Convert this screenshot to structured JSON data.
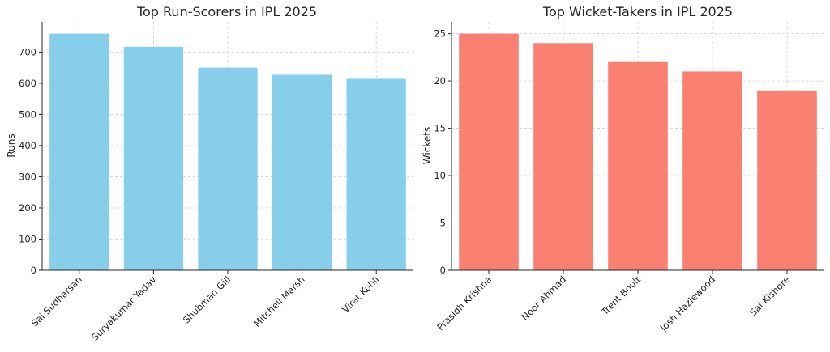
{
  "chart_data": [
    {
      "type": "bar",
      "title": "Top Run-Scorers in IPL 2025",
      "xlabel": "",
      "ylabel": "Runs",
      "categories": [
        "Sai Sudharsan",
        "Suryakumar Yadav",
        "Shubman Gill",
        "Mitchell Marsh",
        "Virat Kohli"
      ],
      "values": [
        759,
        717,
        650,
        627,
        614
      ],
      "ylim": [
        0,
        797
      ],
      "yticks": [
        0,
        100,
        200,
        300,
        400,
        500,
        600,
        700
      ],
      "color": "#87ceeb",
      "grid": true
    },
    {
      "type": "bar",
      "title": "Top Wicket-Takers in IPL 2025",
      "xlabel": "",
      "ylabel": "Wickets",
      "categories": [
        "Prasidh Krishna",
        "Noor Ahmad",
        "Trent Boult",
        "Josh Hazlewood",
        "Sai Kishore"
      ],
      "values": [
        25,
        24,
        22,
        21,
        19
      ],
      "ylim": [
        0,
        26.25
      ],
      "yticks": [
        0,
        5,
        10,
        15,
        20,
        25
      ],
      "color": "#fa8072",
      "grid": true
    }
  ]
}
